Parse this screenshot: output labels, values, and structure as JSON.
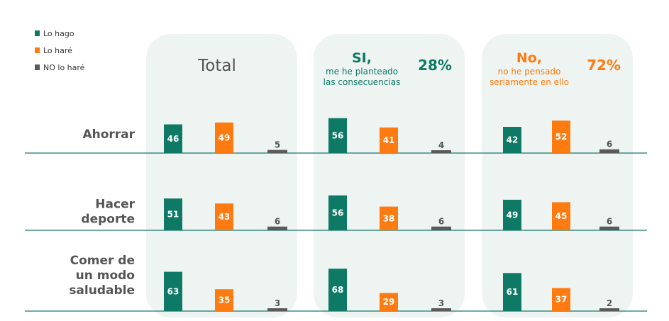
{
  "colors": {
    "lo_hago": "#0e7a65",
    "lo_hare": "#fd7b10",
    "no_lo_hare": "#5a5a5a",
    "panel_bg": "#eef4f2",
    "baseline": "#17786a",
    "heading_dark": "#555555"
  },
  "legend": [
    {
      "label": "Lo hago"
    },
    {
      "label": "Lo haré"
    },
    {
      "label": "NO lo haré"
    }
  ],
  "panels": [
    {
      "title": "Total",
      "subtitle_lines": [],
      "pct": ""
    },
    {
      "title": "SI,",
      "subtitle_lines": [
        "me he planteado",
        "las consecuencias"
      ],
      "pct": "28%"
    },
    {
      "title": "No,",
      "subtitle_lines": [
        "no he pensado",
        "seriamente en ello"
      ],
      "pct": "72%"
    }
  ],
  "chart_data": {
    "type": "bar",
    "series_names": [
      "Lo hago",
      "Lo haré",
      "NO lo haré"
    ],
    "rows": [
      {
        "label_lines": [
          "Ahorrar"
        ],
        "groups": [
          {
            "panel": "Total",
            "values": [
              46,
              49,
              5
            ]
          },
          {
            "panel": "SI",
            "values": [
              56,
              41,
              4
            ]
          },
          {
            "panel": "No",
            "values": [
              42,
              52,
              6
            ]
          }
        ]
      },
      {
        "label_lines": [
          "Hacer",
          "deporte"
        ],
        "groups": [
          {
            "panel": "Total",
            "values": [
              51,
              43,
              6
            ]
          },
          {
            "panel": "SI",
            "values": [
              56,
              38,
              6
            ]
          },
          {
            "panel": "No",
            "values": [
              49,
              45,
              6
            ]
          }
        ]
      },
      {
        "label_lines": [
          "Comer de",
          "un modo",
          "saludable"
        ],
        "groups": [
          {
            "panel": "Total",
            "values": [
              63,
              35,
              3
            ]
          },
          {
            "panel": "SI",
            "values": [
              68,
              29,
              3
            ]
          },
          {
            "panel": "No",
            "values": [
              61,
              37,
              2
            ]
          }
        ]
      }
    ]
  }
}
